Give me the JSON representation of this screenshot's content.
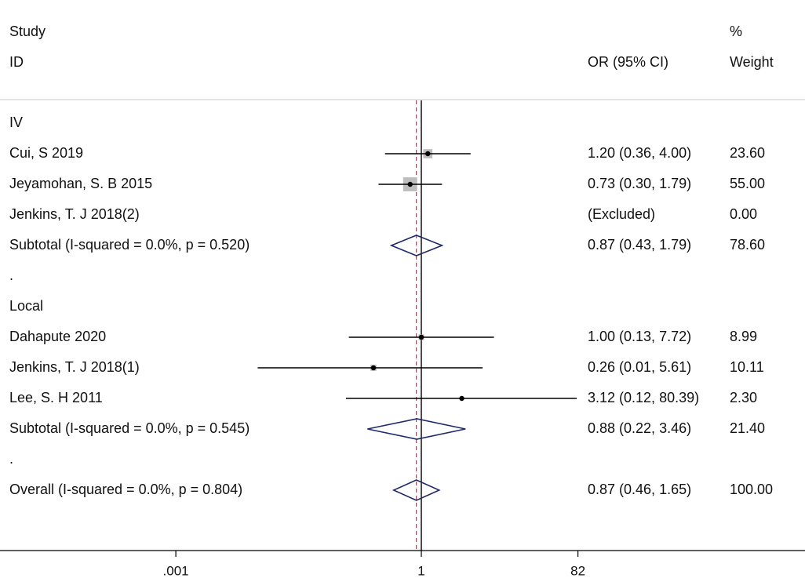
{
  "header": {
    "study": "Study",
    "id": "ID",
    "or_ci": "OR (95% CI)",
    "pct": "%",
    "weight": "Weight"
  },
  "chart_data": {
    "type": "forest",
    "xscale": "log",
    "xticks": [
      {
        "value": 0.001,
        "label": ".001"
      },
      {
        "value": 1,
        "label": "1"
      },
      {
        "value": 82,
        "label": "82"
      }
    ],
    "null_line": 1,
    "overall_estimate": 0.87,
    "colors": {
      "box": "#bdbdbd",
      "line": "#000000",
      "diamond": "#1f2a6b",
      "overall_line": "#8b2a3a"
    },
    "rows": [
      {
        "kind": "group",
        "label": "IV"
      },
      {
        "kind": "study",
        "label": "Cui, S 2019",
        "or": 1.2,
        "lo": 0.36,
        "hi": 4.0,
        "ci_text": "1.20 (0.36, 4.00)",
        "weight": 23.6,
        "weight_text": "23.60"
      },
      {
        "kind": "study",
        "label": "Jeyamohan, S. B 2015",
        "or": 0.73,
        "lo": 0.3,
        "hi": 1.79,
        "ci_text": "0.73 (0.30, 1.79)",
        "weight": 55.0,
        "weight_text": "55.00"
      },
      {
        "kind": "excluded",
        "label": "Jenkins, T. J 2018(2)",
        "ci_text": "(Excluded)",
        "weight_text": "0.00"
      },
      {
        "kind": "subtotal",
        "label": "Subtotal  (I-squared = 0.0%, p = 0.520)",
        "or": 0.87,
        "lo": 0.43,
        "hi": 1.79,
        "ci_text": "0.87 (0.43, 1.79)",
        "weight_text": "78.60"
      },
      {
        "kind": "spacer",
        "label": "."
      },
      {
        "kind": "group",
        "label": "Local"
      },
      {
        "kind": "study",
        "label": "Dahapute 2020",
        "or": 1.0,
        "lo": 0.13,
        "hi": 7.72,
        "ci_text": "1.00 (0.13, 7.72)",
        "weight": 8.99,
        "weight_text": "8.99"
      },
      {
        "kind": "study",
        "label": "Jenkins, T. J 2018(1)",
        "or": 0.26,
        "lo": 0.01,
        "hi": 5.61,
        "ci_text": "0.26 (0.01, 5.61)",
        "weight": 10.11,
        "weight_text": "10.11"
      },
      {
        "kind": "study",
        "label": "Lee, S. H 2011",
        "or": 3.12,
        "lo": 0.12,
        "hi": 80.39,
        "ci_text": "3.12 (0.12, 80.39)",
        "weight": 2.3,
        "weight_text": "2.30"
      },
      {
        "kind": "subtotal",
        "label": "Subtotal  (I-squared = 0.0%, p = 0.545)",
        "or": 0.88,
        "lo": 0.22,
        "hi": 3.46,
        "ci_text": "0.88 (0.22, 3.46)",
        "weight_text": "21.40"
      },
      {
        "kind": "spacer",
        "label": "."
      },
      {
        "kind": "overall",
        "label": "Overall  (I-squared = 0.0%, p = 0.804)",
        "or": 0.87,
        "lo": 0.46,
        "hi": 1.65,
        "ci_text": "0.87 (0.46, 1.65)",
        "weight_text": "100.00"
      }
    ]
  }
}
